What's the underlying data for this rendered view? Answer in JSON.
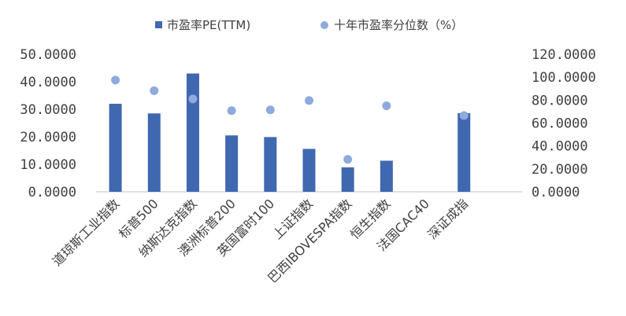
{
  "chart_data": {
    "type": "bar",
    "categories": [
      "道琼斯工业指数",
      "标普500",
      "纳斯达克指数",
      "澳洲标普200",
      "英国富时100",
      "上证指数",
      "巴西IBOVESPA指数",
      "恒生指数",
      "法国CAC40",
      "深证成指"
    ],
    "series": [
      {
        "name": "市盈率PE(TTM)",
        "type": "bar",
        "axis": "left",
        "color": "#4068b0",
        "values": [
          32.0,
          28.5,
          43.0,
          20.5,
          19.9,
          15.6,
          8.9,
          11.3,
          null,
          28.6
        ]
      },
      {
        "name": "十年市盈率分位数（%）",
        "type": "scatter",
        "axis": "right",
        "color": "#8faadc",
        "values": [
          97.5,
          88.2,
          81.0,
          70.8,
          71.5,
          79.6,
          28.3,
          75.0,
          null,
          66.5
        ]
      }
    ],
    "y_left": {
      "ticks": [
        "50.0000",
        "40.0000",
        "30.0000",
        "20.0000",
        "10.0000",
        "0.0000"
      ],
      "ylim": [
        0,
        50
      ]
    },
    "y_right": {
      "ticks": [
        "120.0000",
        "100.0000",
        "80.0000",
        "60.0000",
        "40.0000",
        "20.0000",
        "0.0000"
      ],
      "ylim": [
        0,
        120
      ]
    },
    "grid": false,
    "legend_position": "top"
  }
}
